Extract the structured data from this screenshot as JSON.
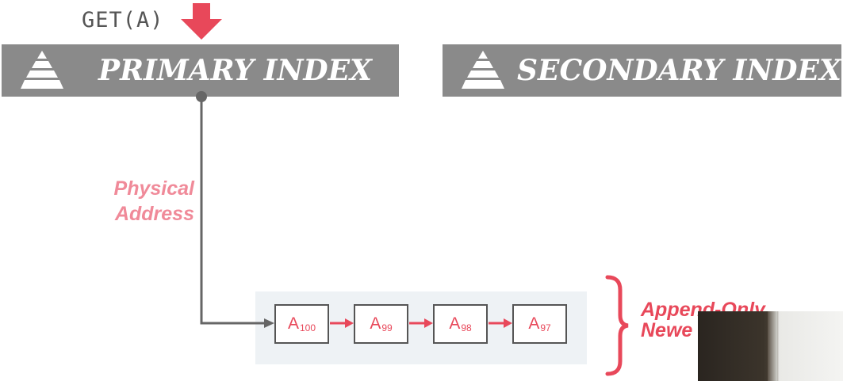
{
  "get_call": "GET(A)",
  "primary_index": {
    "title": "PRIMARY INDEX",
    "icon": "pyramid-icon"
  },
  "secondary_index": {
    "title": "SECONDARY INDEX",
    "icon": "pyramid-icon"
  },
  "pointer_label": {
    "line1": "Physical",
    "line2": "Address"
  },
  "version_chain": [
    {
      "base": "A",
      "version": "100"
    },
    {
      "base": "A",
      "version": "99"
    },
    {
      "base": "A",
      "version": "98"
    },
    {
      "base": "A",
      "version": "97"
    }
  ],
  "chain_note": {
    "line1": "Append-Only",
    "line2": "Newe"
  },
  "colors": {
    "accent_red": "#e8485a",
    "pink_label": "#f08a99",
    "index_bar": "#8a8a8a",
    "connector": "#666666"
  }
}
